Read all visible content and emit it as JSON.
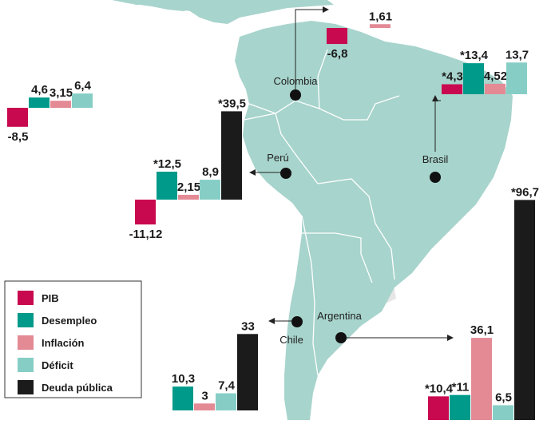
{
  "chart_data": {
    "type": "bar",
    "series": [
      {
        "name": "PIB",
        "color": "#c8094f"
      },
      {
        "name": "Desempleo",
        "color": "#009a8a"
      },
      {
        "name": "Inflación",
        "color": "#e38a95"
      },
      {
        "name": "Déficit",
        "color": "#86cec5"
      },
      {
        "name": "Deuda pública",
        "color": "#1b1b1b"
      }
    ],
    "charts": [
      {
        "country": "",
        "values": [
          -8.5,
          4.6,
          3.15,
          6.4,
          null
        ],
        "labels": [
          "-8,5",
          "4,6",
          "3,15",
          "6,4",
          ""
        ]
      },
      {
        "country": "Colombia",
        "values": [
          -6.8,
          null,
          1.61,
          null,
          null
        ],
        "labels": [
          "-6,8",
          "",
          "1,61",
          "",
          ""
        ]
      },
      {
        "country": "Brasil",
        "values": [
          4.3,
          13.4,
          4.52,
          13.7,
          null
        ],
        "labels": [
          "*4,3",
          "*13,4",
          "4,52",
          "13,7",
          ""
        ]
      },
      {
        "country": "Perú",
        "values": [
          -11.12,
          12.5,
          2.15,
          8.9,
          39.5
        ],
        "labels": [
          "-11,12",
          "*12,5",
          "2,15",
          "8,9",
          "*39,5"
        ]
      },
      {
        "country": "Chile",
        "values": [
          null,
          10.3,
          3,
          7.4,
          33
        ],
        "labels": [
          "",
          "10,3",
          "3",
          "7,4",
          "33"
        ]
      },
      {
        "country": "Argentina",
        "values": [
          10.4,
          11,
          36.1,
          6.5,
          96.7
        ],
        "labels": [
          "*10,4",
          "*11",
          "36,1",
          "6,5",
          "*96,7"
        ]
      }
    ]
  },
  "map": {
    "land_color": "#a7d4cc",
    "neighbor_color": "#e6e6e6",
    "border_color": "#ffffff",
    "pin_color": "#111111"
  },
  "countries": {
    "colombia": "Colombia",
    "brasil": "Brasil",
    "peru": "Perú",
    "chile": "Chile",
    "argentina": "Argentina"
  },
  "legend": {
    "items": [
      {
        "label": "PIB",
        "color": "#c8094f"
      },
      {
        "label": "Desempleo",
        "color": "#009a8a"
      },
      {
        "label": "Inflación",
        "color": "#e38a95"
      },
      {
        "label": "Déficit",
        "color": "#86cec5"
      },
      {
        "label": "Deuda pública",
        "color": "#1b1b1b"
      }
    ]
  }
}
